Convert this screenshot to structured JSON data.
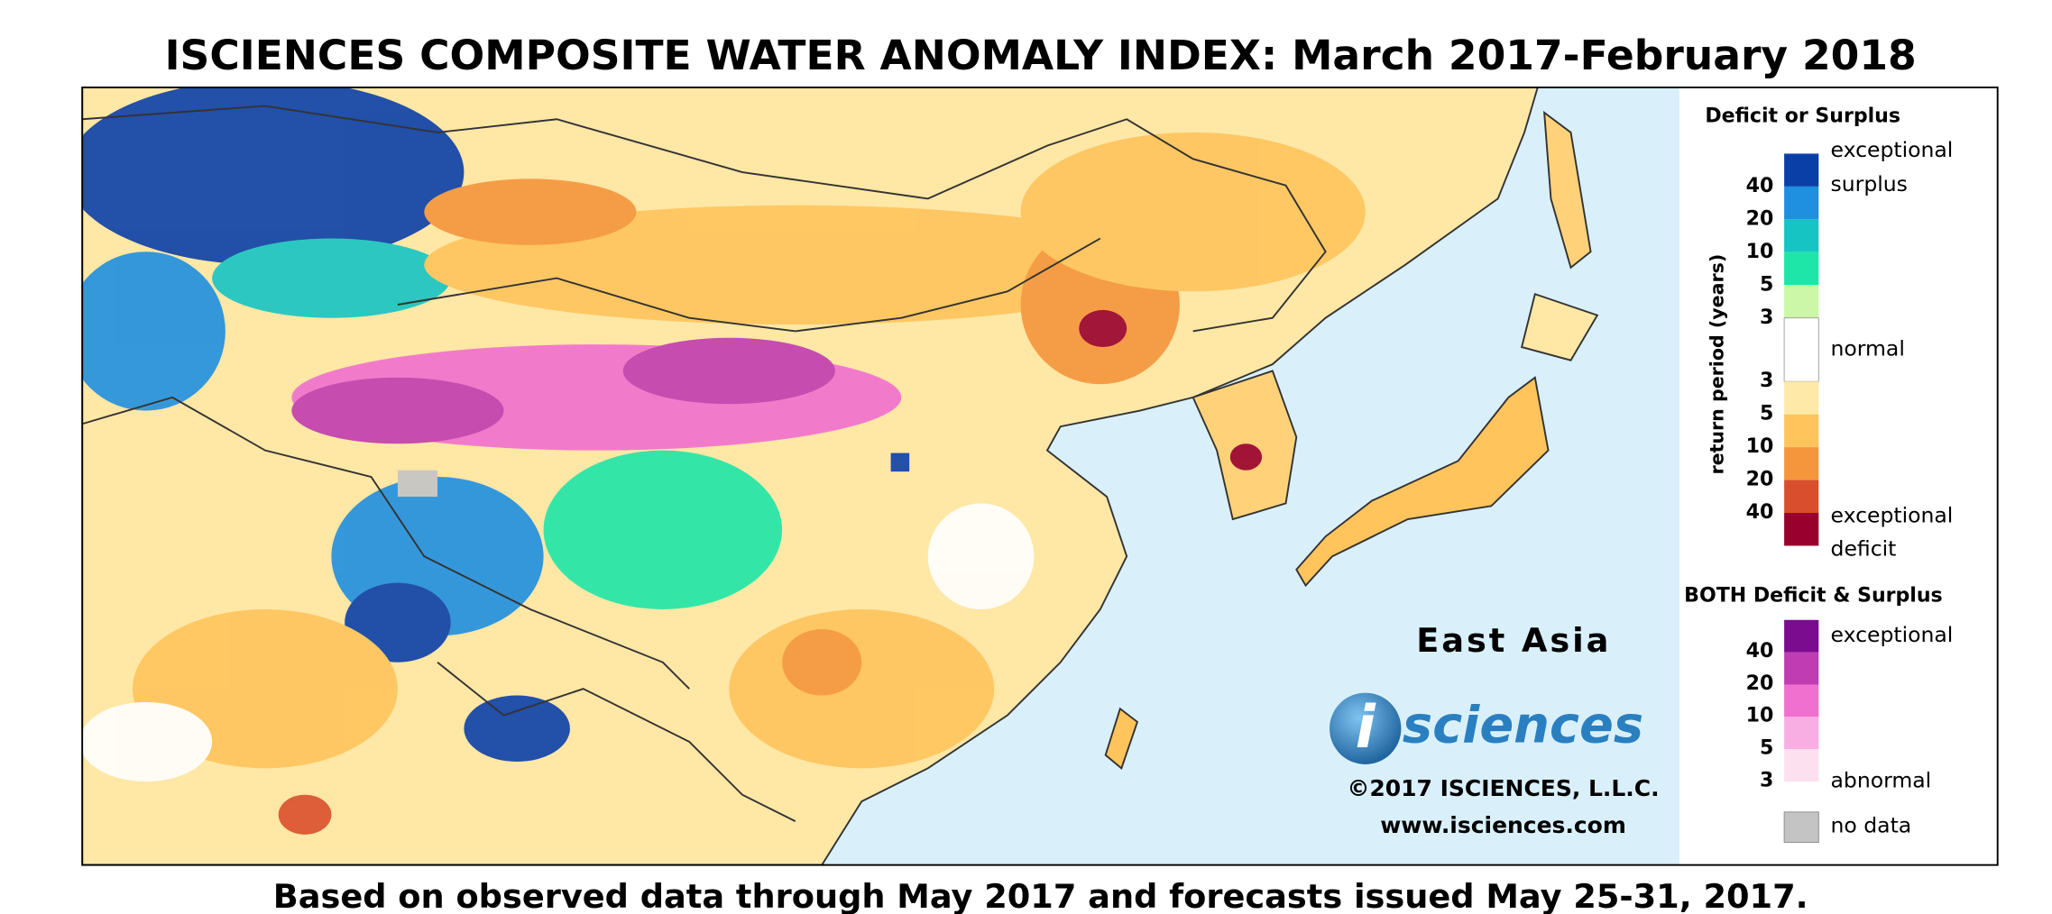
{
  "title": "ISCIENCES COMPOSITE WATER ANOMALY INDEX: March 2017-February 2018",
  "footer": "Based on observed data through May 2017 and forecasts issued May 25-31, 2017.",
  "region": "East Asia",
  "logo": {
    "mark": "i",
    "text": "sciences"
  },
  "copyright": "©2017 ISCIENCES, L.L.C.",
  "url": "www.isciences.com",
  "legend": {
    "deficit_surplus": {
      "title": "Deficit or Surplus",
      "axis_label": "return period (years)",
      "surplus_colors": [
        "#0b3fa8",
        "#1f8fe0",
        "#16c4c4",
        "#1de6a8",
        "#ccf7a8"
      ],
      "normal_color": "#ffffff",
      "deficit_colors": [
        "#ffe9a8",
        "#ffc45c",
        "#f5963c",
        "#d94f2e",
        "#99002e"
      ],
      "surplus_ticks": [
        40,
        20,
        10,
        5,
        3
      ],
      "deficit_ticks": [
        3,
        5,
        10,
        20,
        40
      ],
      "labels": {
        "surplus_top": "exceptional",
        "surplus_bottom": "surplus",
        "normal": "normal",
        "deficit_top": "exceptional",
        "deficit_bottom": "deficit"
      }
    },
    "both": {
      "title": "BOTH Deficit & Surplus",
      "colors": [
        "#7b0c8f",
        "#c03cb2",
        "#f070cf",
        "#f9aee3",
        "#fde0ef"
      ],
      "ticks": [
        40,
        20,
        10,
        5,
        3
      ],
      "labels": {
        "top": "exceptional",
        "bottom": "abnormal"
      }
    },
    "no_data": {
      "label": "no data",
      "color": "#c4c4c4"
    }
  }
}
